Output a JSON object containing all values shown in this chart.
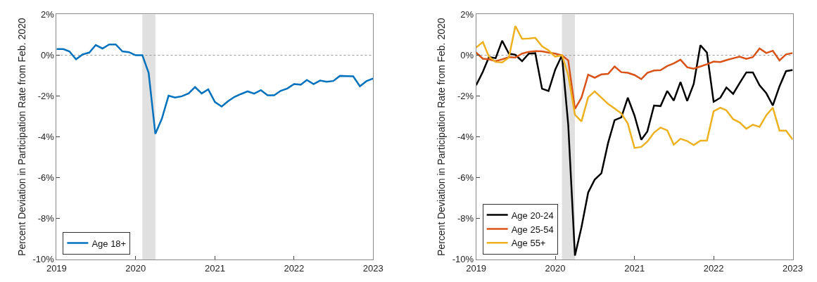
{
  "chart_data": [
    {
      "type": "line",
      "ylabel": "Percent Deviation in Participation Rate from Feb. 2020",
      "x": [
        "2019-01",
        "2019-02",
        "2019-03",
        "2019-04",
        "2019-05",
        "2019-06",
        "2019-07",
        "2019-08",
        "2019-09",
        "2019-10",
        "2019-11",
        "2019-12",
        "2020-01",
        "2020-02",
        "2020-03",
        "2020-04",
        "2020-05",
        "2020-06",
        "2020-07",
        "2020-08",
        "2020-09",
        "2020-10",
        "2020-11",
        "2020-12",
        "2021-01",
        "2021-02",
        "2021-03",
        "2021-04",
        "2021-05",
        "2021-06",
        "2021-07",
        "2021-08",
        "2021-09",
        "2021-10",
        "2021-11",
        "2021-12",
        "2022-01",
        "2022-02",
        "2022-03",
        "2022-04",
        "2022-05",
        "2022-06",
        "2022-07",
        "2022-08",
        "2022-09",
        "2022-10",
        "2022-11",
        "2022-12",
        "2023-01"
      ],
      "series": [
        {
          "name": "Age 18+",
          "color": "#0072bd",
          "values": [
            0.3,
            0.3,
            0.19,
            -0.2,
            0.04,
            0.13,
            0.5,
            0.33,
            0.53,
            0.53,
            0.19,
            0.15,
            0,
            0,
            -0.86,
            -3.85,
            -3.11,
            -1.98,
            -2.07,
            -2.01,
            -1.87,
            -1.56,
            -1.87,
            -1.67,
            -2.29,
            -2.51,
            -2.26,
            -2.04,
            -1.9,
            -1.77,
            -1.88,
            -1.71,
            -1.96,
            -1.96,
            -1.74,
            -1.63,
            -1.41,
            -1.44,
            -1.21,
            -1.41,
            -1.24,
            -1.3,
            -1.26,
            -1.01,
            -1.02,
            -1.03,
            -1.52,
            -1.27,
            -1.14
          ]
        }
      ],
      "xlim": [
        "2019-01",
        "2023-01"
      ],
      "xticks": [
        {
          "value": "2019-01",
          "label": "2019"
        },
        {
          "value": "2020-01",
          "label": "2020"
        },
        {
          "value": "2021-01",
          "label": "2021"
        },
        {
          "value": "2022-01",
          "label": "2022"
        },
        {
          "value": "2023-01",
          "label": "2023"
        }
      ],
      "ylim": [
        -10,
        2
      ],
      "yticks": [
        {
          "value": -10,
          "label": "-10%"
        },
        {
          "value": -8,
          "label": "-8%"
        },
        {
          "value": -6,
          "label": "-6%"
        },
        {
          "value": -4,
          "label": "-4%"
        },
        {
          "value": -2,
          "label": "-2%"
        },
        {
          "value": 0,
          "label": "0%"
        },
        {
          "value": 2,
          "label": "2%"
        }
      ],
      "ref_lines": [
        {
          "axis": "y",
          "value": 0,
          "color": "#999999",
          "line_style": "dotted"
        }
      ],
      "bands": [
        {
          "axis": "x",
          "from": "2020-02",
          "to": "2020-04",
          "color": "#e0e0e0"
        }
      ],
      "grid": false,
      "legend": "bottom left",
      "marker": "none",
      "line_style": "solid"
    },
    {
      "type": "line",
      "ylabel": "Percent Deviation in Participation Rate from Feb. 2020",
      "x": [
        "2019-01",
        "2019-02",
        "2019-03",
        "2019-04",
        "2019-05",
        "2019-06",
        "2019-07",
        "2019-08",
        "2019-09",
        "2019-10",
        "2019-11",
        "2019-12",
        "2020-01",
        "2020-02",
        "2020-03",
        "2020-04",
        "2020-05",
        "2020-06",
        "2020-07",
        "2020-08",
        "2020-09",
        "2020-10",
        "2020-11",
        "2020-12",
        "2021-01",
        "2021-02",
        "2021-03",
        "2021-04",
        "2021-05",
        "2021-06",
        "2021-07",
        "2021-08",
        "2021-09",
        "2021-10",
        "2021-11",
        "2021-12",
        "2022-01",
        "2022-02",
        "2022-03",
        "2022-04",
        "2022-05",
        "2022-06",
        "2022-07",
        "2022-08",
        "2022-09",
        "2022-10",
        "2022-11",
        "2022-12",
        "2023-01"
      ],
      "series": [
        {
          "name": "Age 20-24",
          "color": "#000000",
          "values": [
            -1.47,
            -0.81,
            -0.09,
            -0.14,
            0.71,
            0.08,
            0.02,
            -0.29,
            0.08,
            0.1,
            -1.64,
            -1.75,
            -0.7,
            0,
            -3.4,
            -9.81,
            -8.43,
            -6.72,
            -6.09,
            -5.78,
            -4.29,
            -3.18,
            -3.04,
            -2.08,
            -2.96,
            -4.14,
            -3.73,
            -2.46,
            -2.49,
            -1.75,
            -2.22,
            -1.31,
            -2.24,
            -1.41,
            0.49,
            0.13,
            -2.28,
            -2.08,
            -1.58,
            -1.89,
            -1.36,
            -0.84,
            -0.84,
            -1.47,
            -1.86,
            -2.46,
            -1.52,
            -0.78,
            -0.72
          ]
        },
        {
          "name": "Age 25-54",
          "color": "#d95319",
          "values": [
            0.13,
            -0.17,
            -0.2,
            -0.29,
            -0.2,
            -0.09,
            -0.11,
            0.08,
            0.17,
            0.2,
            0.19,
            0.13,
            0.08,
            0,
            -0.25,
            -2.63,
            -2.08,
            -0.95,
            -1.1,
            -0.94,
            -0.91,
            -0.55,
            -0.83,
            -0.86,
            -0.97,
            -1.17,
            -0.86,
            -0.75,
            -0.73,
            -0.53,
            -0.4,
            -0.22,
            -0.59,
            -0.66,
            -0.55,
            -0.44,
            -0.31,
            -0.33,
            -0.24,
            -0.15,
            -0.07,
            -0.18,
            -0.09,
            0.33,
            0.11,
            0.22,
            -0.25,
            0.04,
            0.11
          ]
        },
        {
          "name": "Age 55+",
          "color": "#edb120",
          "values": [
            0.38,
            0.65,
            -0.07,
            -0.33,
            -0.35,
            -0.11,
            1.43,
            0.8,
            0.82,
            0.85,
            0.44,
            0.24,
            -0.07,
            0,
            -0.97,
            -2.91,
            -3.24,
            -2.06,
            -1.77,
            -2.08,
            -2.38,
            -2.61,
            -2.85,
            -3.35,
            -4.54,
            -4.49,
            -4.23,
            -3.79,
            -3.54,
            -3.68,
            -4.38,
            -4.09,
            -4.2,
            -4.4,
            -4.18,
            -4.18,
            -2.74,
            -2.57,
            -2.7,
            -3.13,
            -3.29,
            -3.6,
            -3.4,
            -3.51,
            -2.94,
            -2.57,
            -3.69,
            -3.69,
            -4.13
          ]
        }
      ],
      "xlim": [
        "2019-01",
        "2023-01"
      ],
      "xticks": [
        {
          "value": "2019-01",
          "label": "2019"
        },
        {
          "value": "2020-01",
          "label": "2020"
        },
        {
          "value": "2021-01",
          "label": "2021"
        },
        {
          "value": "2022-01",
          "label": "2022"
        },
        {
          "value": "2023-01",
          "label": "2023"
        }
      ],
      "ylim": [
        -10,
        2
      ],
      "yticks": [
        {
          "value": -10,
          "label": "-10%"
        },
        {
          "value": -8,
          "label": "-8%"
        },
        {
          "value": -6,
          "label": "-6%"
        },
        {
          "value": -4,
          "label": "-4%"
        },
        {
          "value": -2,
          "label": "-2%"
        },
        {
          "value": 0,
          "label": "0%"
        },
        {
          "value": 2,
          "label": "2%"
        }
      ],
      "ref_lines": [
        {
          "axis": "y",
          "value": 0,
          "color": "#999999",
          "line_style": "dotted"
        }
      ],
      "bands": [
        {
          "axis": "x",
          "from": "2020-02",
          "to": "2020-04",
          "color": "#e0e0e0"
        }
      ],
      "grid": false,
      "legend": "bottom left",
      "marker": "none",
      "line_style": "solid"
    }
  ]
}
